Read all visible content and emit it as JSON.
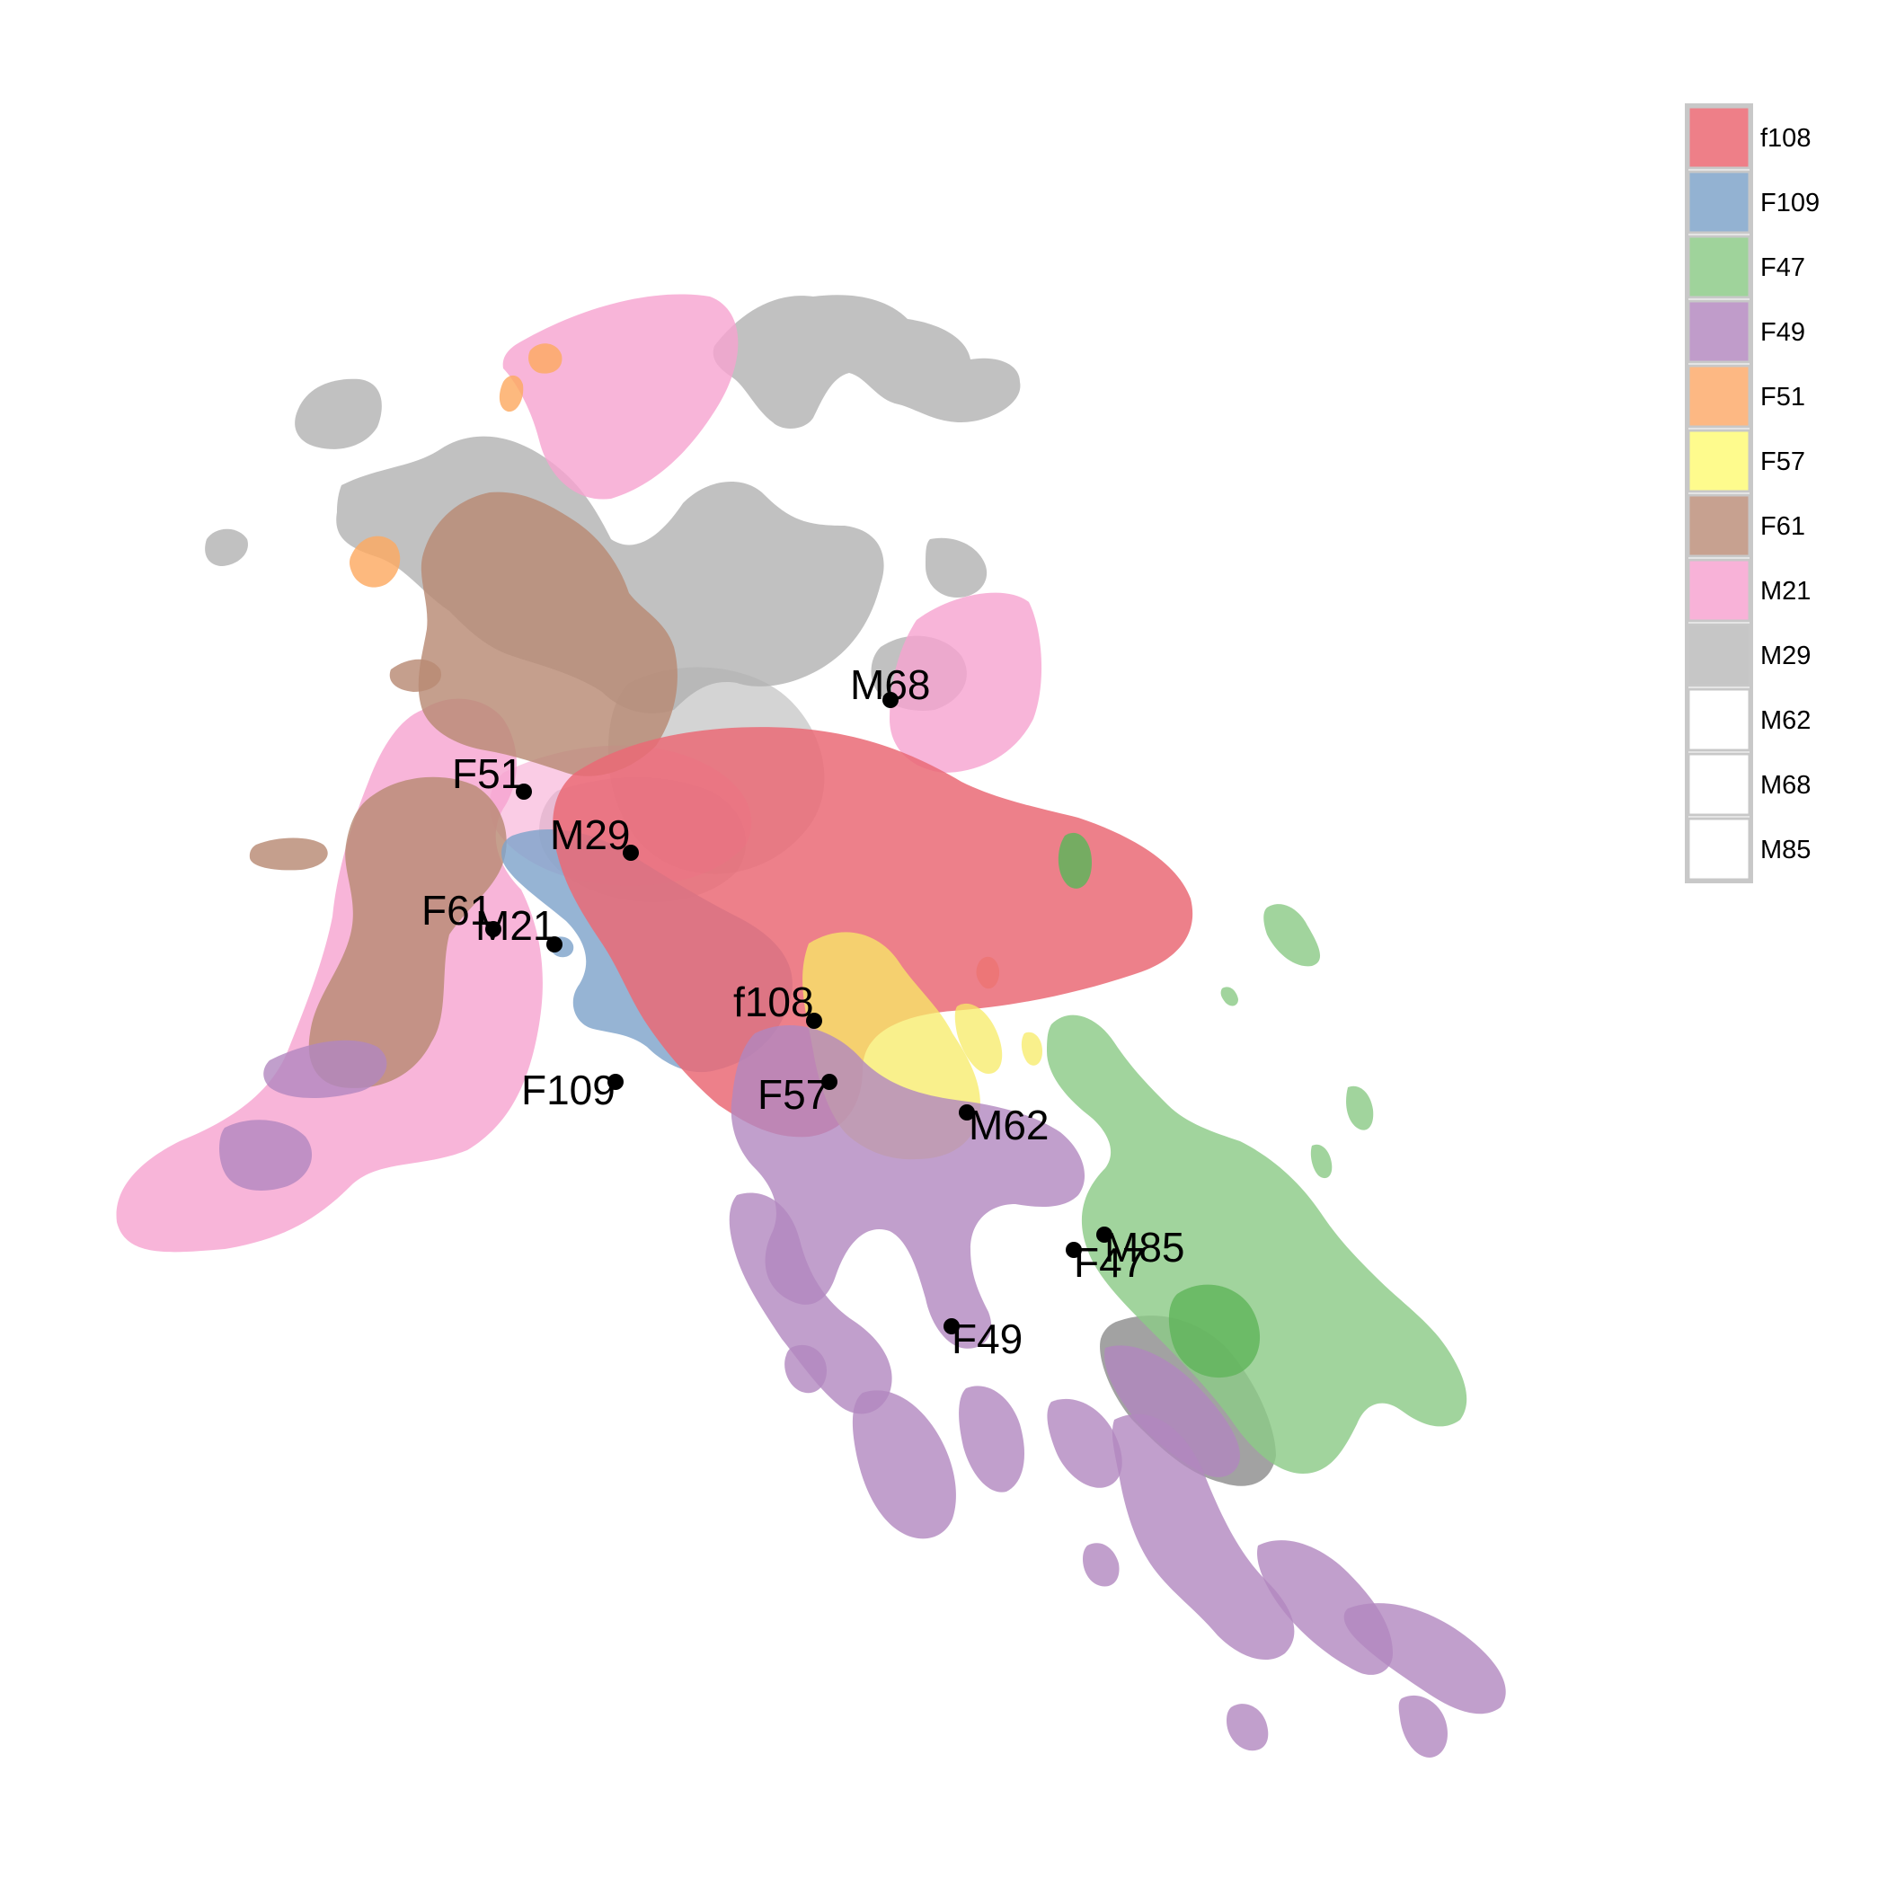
{
  "chart_data": {
    "type": "density-contour-map",
    "title": "",
    "xlabel": "",
    "ylabel": "",
    "grid": false,
    "axes_visible": false,
    "legend_position": "top-right",
    "legend": [
      {
        "name": "f108",
        "color": "#ee7f88"
      },
      {
        "name": "F109",
        "color": "#93b2d2"
      },
      {
        "name": "F47",
        "color": "#9fd39b"
      },
      {
        "name": "F49",
        "color": "#c09cca"
      },
      {
        "name": "F51",
        "color": "#fdb883"
      },
      {
        "name": "F57",
        "color": "#fefb8d"
      },
      {
        "name": "F61",
        "color": "#c7a190"
      },
      {
        "name": "M21",
        "color": "#f8b2d8"
      },
      {
        "name": "M29",
        "color": "#c6c6c6"
      },
      {
        "name": "M62",
        "color": "#ffffff"
      },
      {
        "name": "M68",
        "color": "#ffffff"
      },
      {
        "name": "M85",
        "color": "#ffffff"
      }
    ],
    "points": [
      {
        "name": "M68",
        "x": 0.53,
        "y": 0.73
      },
      {
        "name": "F51",
        "x": 0.29,
        "y": 0.67
      },
      {
        "name": "M29",
        "x": 0.36,
        "y": 0.63
      },
      {
        "name": "F61",
        "x": 0.27,
        "y": 0.58
      },
      {
        "name": "M21",
        "x": 0.31,
        "y": 0.57
      },
      {
        "name": "f108",
        "x": 0.48,
        "y": 0.52
      },
      {
        "name": "F109",
        "x": 0.35,
        "y": 0.48
      },
      {
        "name": "F57",
        "x": 0.49,
        "y": 0.48
      },
      {
        "name": "M62",
        "x": 0.58,
        "y": 0.46
      },
      {
        "name": "M85",
        "x": 0.67,
        "y": 0.38
      },
      {
        "name": "F47",
        "x": 0.65,
        "y": 0.37
      },
      {
        "name": "F49",
        "x": 0.57,
        "y": 0.32
      }
    ],
    "xlim": [
      0,
      1
    ],
    "ylim": [
      0,
      1
    ]
  }
}
